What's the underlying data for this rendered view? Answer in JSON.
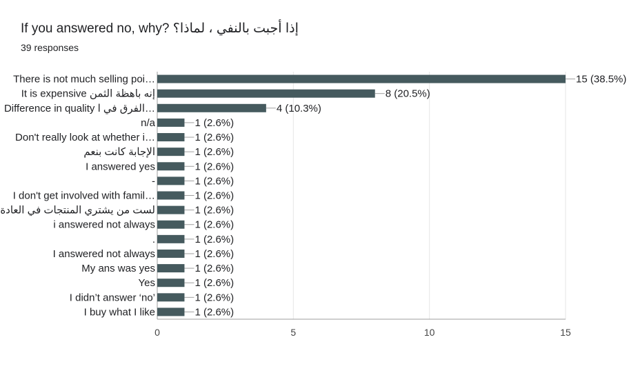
{
  "header": {
    "title": "If you answered no, why? إذا أجبت بالنفي ، لماذا؟",
    "responses": "39 responses"
  },
  "colors": {
    "bar": "#455a5e",
    "grid": "#e6e6e6",
    "axis": "#9e9e9e"
  },
  "chart_data": {
    "type": "bar",
    "orientation": "horizontal",
    "categories": [
      "There is not much selling poi…",
      "It is expensive إنه باهظة الثمن",
      "Difference in quality الفرق في ا…",
      "n/a",
      "Don't really look at whether i…",
      "الإجابة كانت بنعم",
      "I answered yes",
      "-",
      "I don't get involved with famil…",
      "لست من يشتري المنتجات في العادة",
      "i answered not always",
      ".",
      "I answered not always",
      "My ans was yes",
      "Yes",
      "I didn’t answer ‘no’",
      "I buy what I like"
    ],
    "values": [
      15,
      8,
      4,
      1,
      1,
      1,
      1,
      1,
      1,
      1,
      1,
      1,
      1,
      1,
      1,
      1,
      1
    ],
    "value_labels": [
      "15 (38.5%)",
      "8 (20.5%)",
      "4 (10.3%)",
      "1 (2.6%)",
      "1 (2.6%)",
      "1 (2.6%)",
      "1 (2.6%)",
      "1 (2.6%)",
      "1 (2.6%)",
      "1 (2.6%)",
      "1 (2.6%)",
      "1 (2.6%)",
      "1 (2.6%)",
      "1 (2.6%)",
      "1 (2.6%)",
      "1 (2.6%)",
      "1 (2.6%)"
    ],
    "xlim": [
      0,
      15
    ],
    "xticks": [
      0,
      5,
      10,
      15
    ],
    "grid": true
  }
}
